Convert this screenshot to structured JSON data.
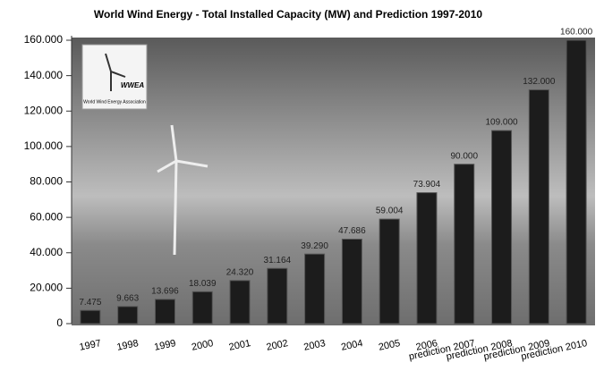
{
  "chart_data": {
    "type": "bar",
    "title": "World Wind Energy - Total Installed Capacity (MW) and Prediction 1997-2010",
    "categories": [
      "1997",
      "1998",
      "1999",
      "2000",
      "2001",
      "2002",
      "2003",
      "2004",
      "2005",
      "2006",
      "prediction 2007",
      "prediction 2008",
      "prediction 2009",
      "prediction 2010"
    ],
    "values": [
      7475,
      9663,
      13696,
      18039,
      24320,
      31164,
      39290,
      47686,
      59004,
      73904,
      90000,
      109000,
      132000,
      160000
    ],
    "value_labels": [
      "7.475",
      "9.663",
      "13.696",
      "18.039",
      "24.320",
      "31.164",
      "39.290",
      "47.686",
      "59.004",
      "73.904",
      "90.000",
      "109.000",
      "132.000",
      "160.000"
    ],
    "color": "#1c1c1c",
    "ylim": [
      0,
      160000
    ],
    "yticks": [
      {
        "value": 0,
        "label": "0"
      },
      {
        "value": 20000,
        "label": "20.000"
      },
      {
        "value": 40000,
        "label": "40.000"
      },
      {
        "value": 60000,
        "label": "60.000"
      },
      {
        "value": 80000,
        "label": "80.000"
      },
      {
        "value": 100000,
        "label": "100.000"
      },
      {
        "value": 120000,
        "label": "120.000"
      },
      {
        "value": 140000,
        "label": "140.000"
      },
      {
        "value": 160000,
        "label": "160.000"
      }
    ],
    "logo": {
      "title": "WWEA",
      "subtitle": "World Wind Energy Association"
    }
  }
}
